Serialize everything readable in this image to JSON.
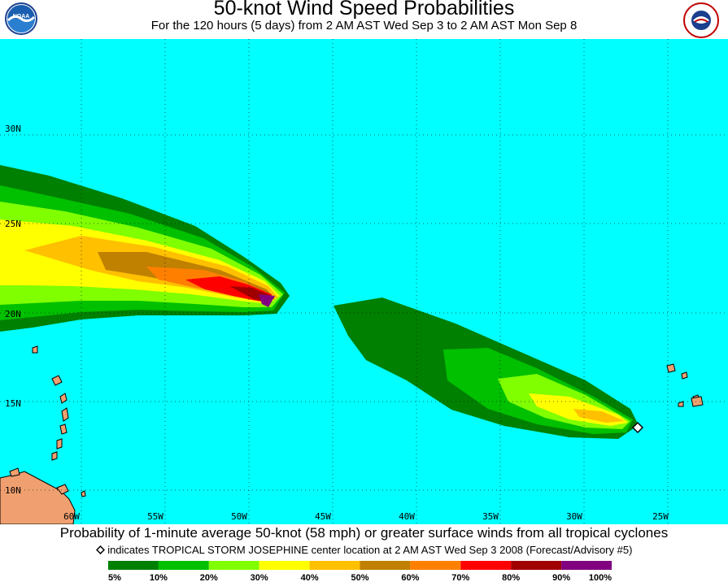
{
  "title": "50-knot Wind Speed Probabilities",
  "subtitle": "For the 120 hours (5 days) from 2 AM AST Wed Sep 3 to 2 AM AST Mon Sep 8",
  "logos": {
    "left": "noaa-logo",
    "right": "nws-logo",
    "left_text": "NOAA"
  },
  "map": {
    "ocean_color": "#00ffff",
    "land_color": "#f0a070",
    "lat_labels": [
      "30N",
      "25N",
      "20N",
      "15N",
      "10N"
    ],
    "lon_labels": [
      "60W",
      "55W",
      "50W",
      "45W",
      "40W",
      "35W",
      "30W",
      "25W"
    ]
  },
  "caption": "Probability of 1-minute average 50-knot (58 mph) or greater surface winds from all tropical cyclones",
  "note": "indicates TROPICAL STORM JOSEPHINE center location at 2 AM AST Wed Sep 3 2008 (Forecast/Advisory #5)",
  "legend": {
    "bins": [
      {
        "color": "#008000"
      },
      {
        "color": "#00c000"
      },
      {
        "color": "#80ff00"
      },
      {
        "color": "#ffff00"
      },
      {
        "color": "#ffc000"
      },
      {
        "color": "#c08000"
      },
      {
        "color": "#ff8000"
      },
      {
        "color": "#ff0000"
      },
      {
        "color": "#a00000"
      },
      {
        "color": "#800080"
      }
    ],
    "labels": [
      "5%",
      "10%",
      "20%",
      "30%",
      "40%",
      "50%",
      "60%",
      "70%",
      "80%",
      "90%",
      "100%"
    ]
  }
}
